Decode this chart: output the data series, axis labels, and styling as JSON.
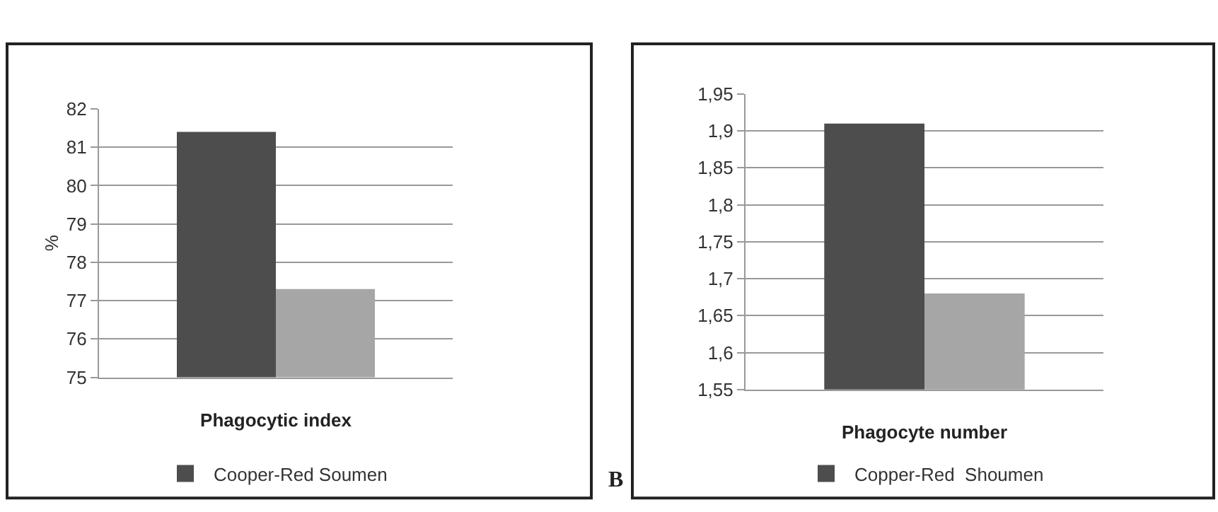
{
  "chart_data": [
    {
      "type": "bar",
      "categories": [
        "Phagocytic index"
      ],
      "ylabel": "%",
      "series": [
        {
          "name": "Cooper-Red Soumen",
          "color": "#4d4d4d",
          "values": [
            81.4
          ]
        },
        {
          "color": "#a6a6a6",
          "values": [
            77.3
          ]
        }
      ],
      "ylim": [
        75,
        82
      ],
      "yticks": [
        75,
        76,
        77,
        78,
        79,
        80,
        81,
        82
      ],
      "grid": "y",
      "legend": "bottom"
    },
    {
      "type": "bar",
      "categories": [
        "Phagocyte number"
      ],
      "series": [
        {
          "name": "Copper-Red  Shoumen",
          "color": "#4d4d4d",
          "values": [
            1.91
          ]
        },
        {
          "color": "#a6a6a6",
          "values": [
            1.68
          ]
        }
      ],
      "ylim": [
        1.55,
        1.95
      ],
      "yticks": [
        {
          "value": 1.55,
          "label": "1,55"
        },
        {
          "value": 1.6,
          "label": "1,6"
        },
        {
          "value": 1.65,
          "label": "1,65"
        },
        {
          "value": 1.7,
          "label": "1,7"
        },
        {
          "value": 1.75,
          "label": "1,75"
        },
        {
          "value": 1.8,
          "label": "1,8"
        },
        {
          "value": 1.85,
          "label": "1,85"
        },
        {
          "value": 1.9,
          "label": "1,9"
        },
        {
          "value": 1.95,
          "label": "1,95"
        }
      ],
      "grid": "y",
      "legend": "bottom",
      "annotations": [
        "B"
      ]
    }
  ]
}
